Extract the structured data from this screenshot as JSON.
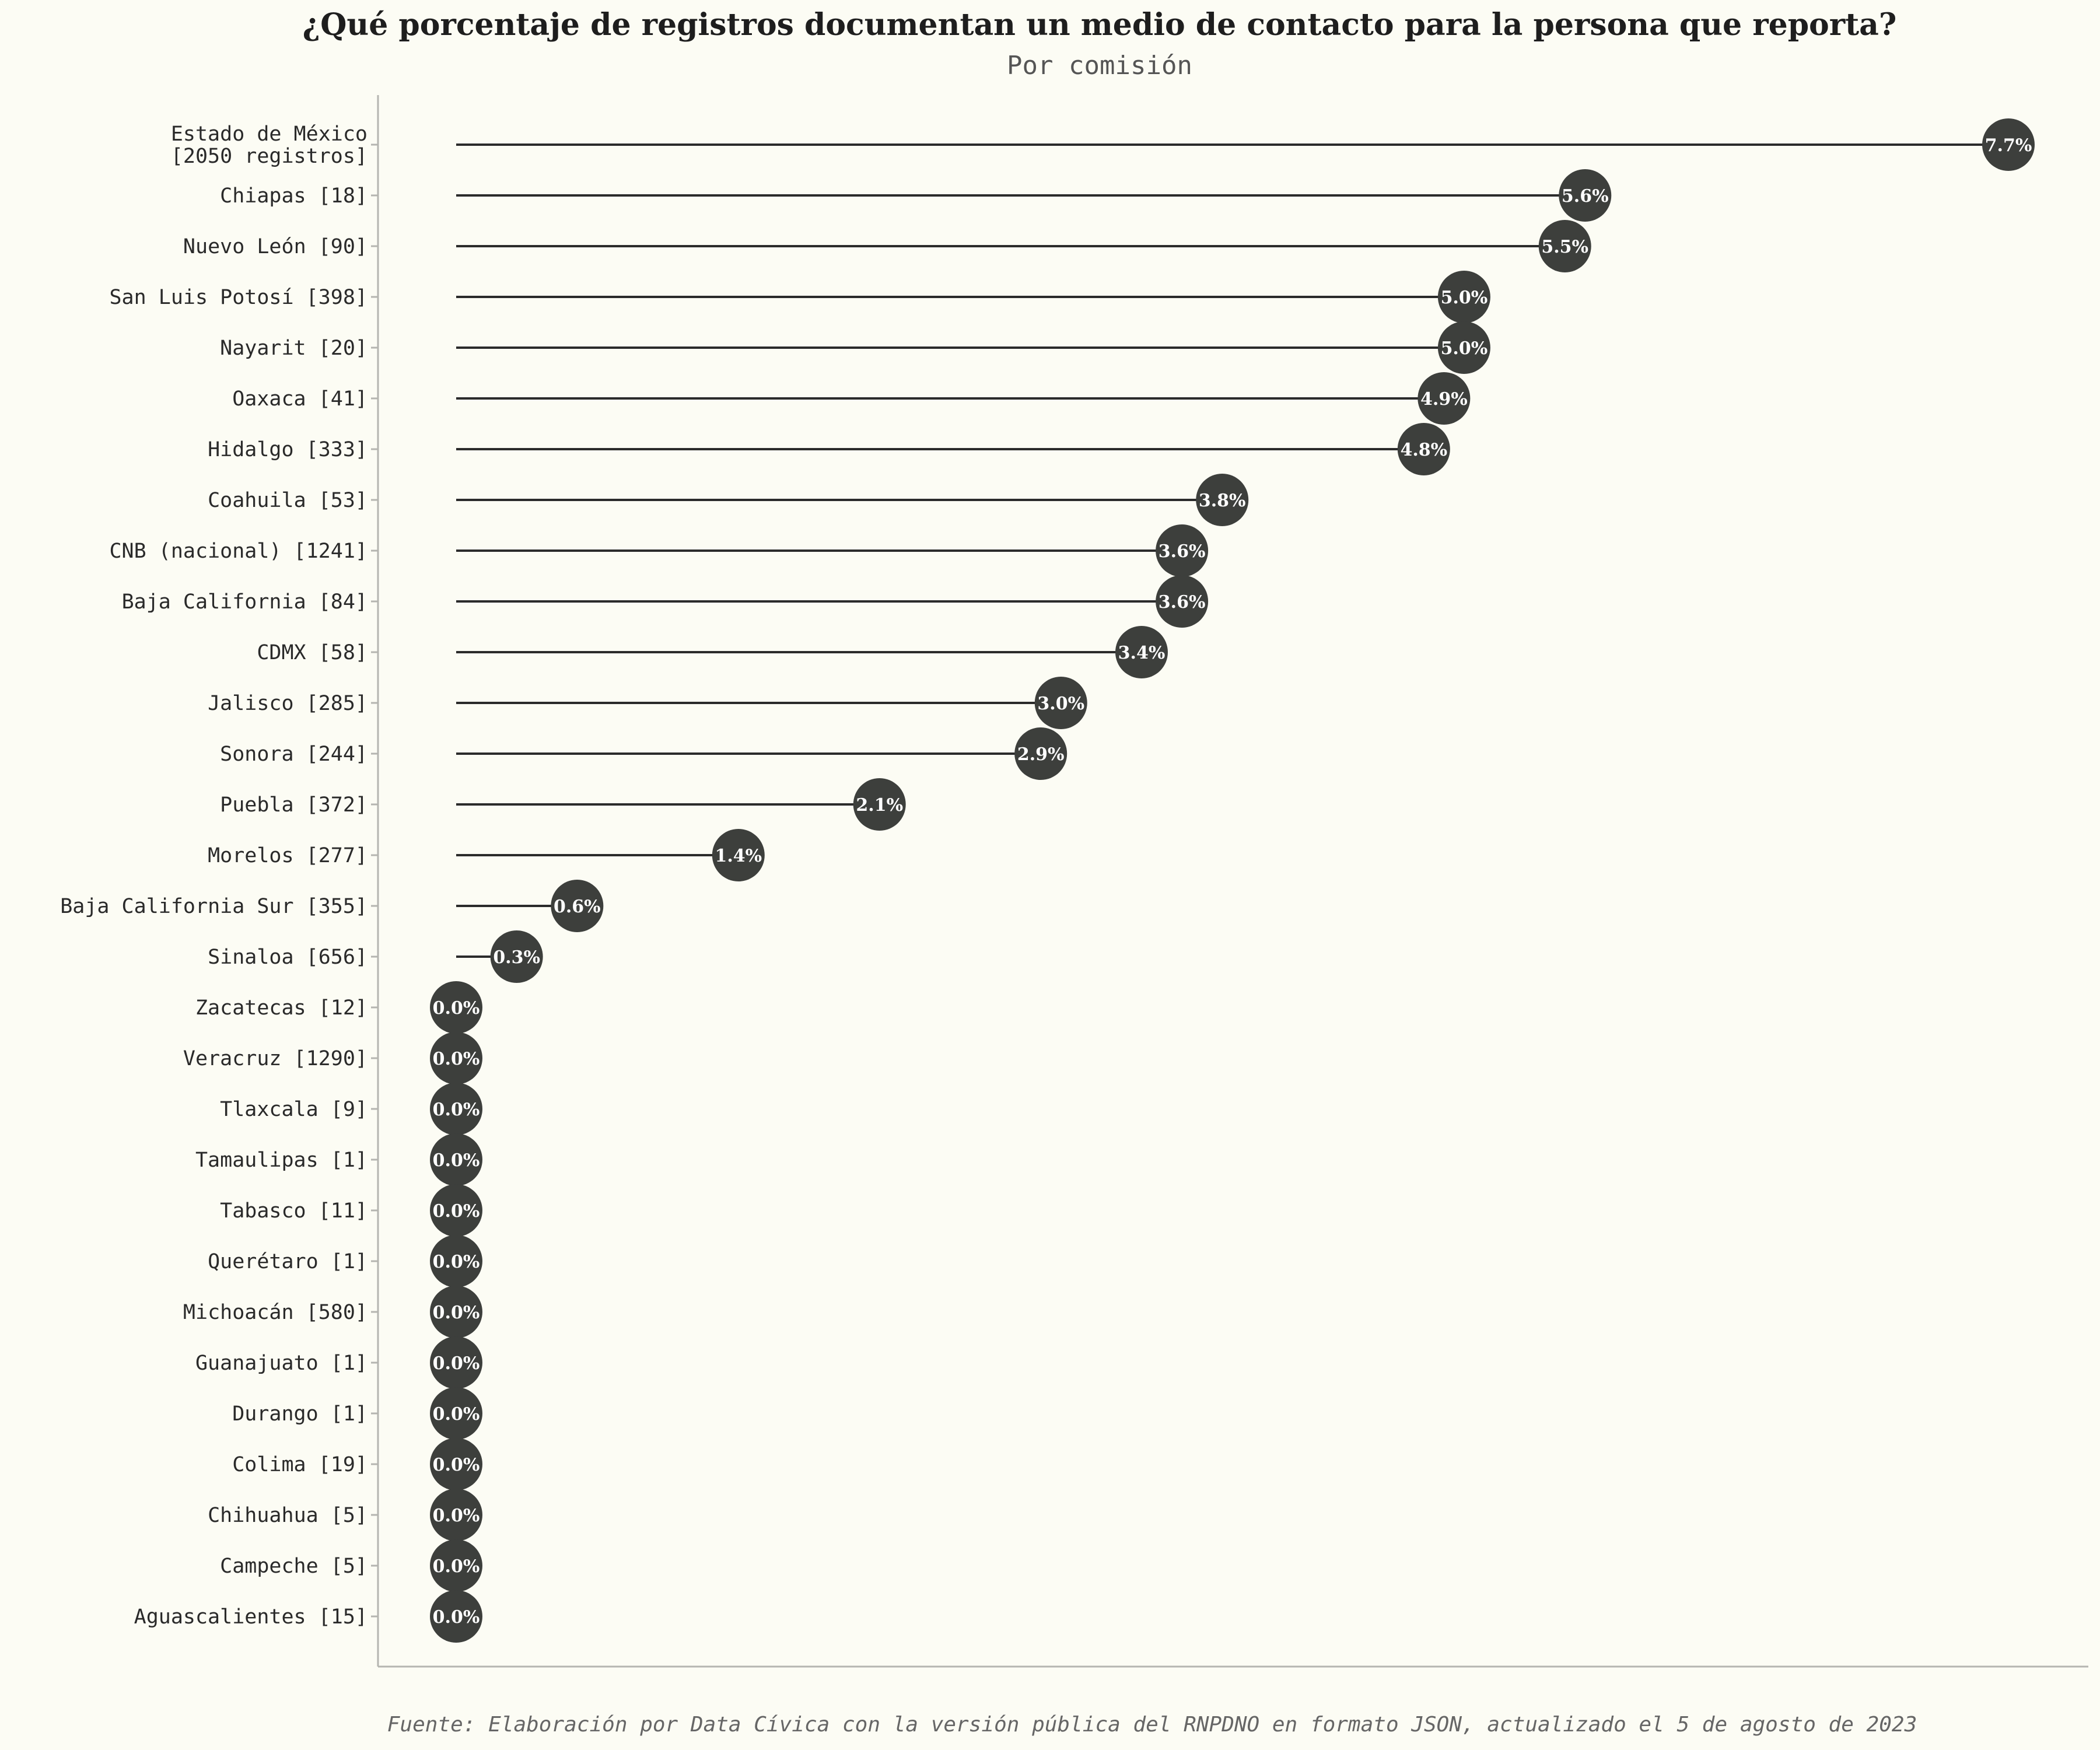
{
  "chart_data": {
    "type": "lollipop",
    "title": "¿Qué porcentaje de registros documentan un medio de contacto para la persona que reporta?",
    "subtitle": "Por comisión",
    "source": "Fuente: Elaboración por Data Cívica con la versión pública del RNPDNO en formato JSON, actualizado el 5 de agosto de 2023",
    "xlim": [
      0,
      7.7
    ],
    "grid": false,
    "colors": {
      "dot": "#3d3f3c",
      "stem": "#2b2b2b",
      "axis": "#b5b5b0",
      "background": "#fcfcf4"
    },
    "categories": [
      "Estado de México\n[2050 registros]",
      "Chiapas [18]",
      "Nuevo León [90]",
      "San Luis Potosí [398]",
      "Nayarit [20]",
      "Oaxaca [41]",
      "Hidalgo [333]",
      "Coahuila [53]",
      "CNB (nacional) [1241]",
      "Baja California [84]",
      "CDMX [58]",
      "Jalisco [285]",
      "Sonora [244]",
      "Puebla [372]",
      "Morelos [277]",
      "Baja California Sur [355]",
      "Sinaloa [656]",
      "Zacatecas [12]",
      "Veracruz [1290]",
      "Tlaxcala [9]",
      "Tamaulipas [1]",
      "Tabasco [11]",
      "Querétaro [1]",
      "Michoacán [580]",
      "Guanajuato [1]",
      "Durango [1]",
      "Colima [19]",
      "Chihuahua [5]",
      "Campeche [5]",
      "Aguascalientes [15]"
    ],
    "values": [
      7.7,
      5.6,
      5.5,
      5.0,
      5.0,
      4.9,
      4.8,
      3.8,
      3.6,
      3.6,
      3.4,
      3.0,
      2.9,
      2.1,
      1.4,
      0.6,
      0.3,
      0.0,
      0.0,
      0.0,
      0.0,
      0.0,
      0.0,
      0.0,
      0.0,
      0.0,
      0.0,
      0.0,
      0.0,
      0.0
    ],
    "value_labels": [
      "7.7%",
      "5.6%",
      "5.5%",
      "5.0%",
      "5.0%",
      "4.9%",
      "4.8%",
      "3.8%",
      "3.6%",
      "3.6%",
      "3.4%",
      "3.0%",
      "2.9%",
      "2.1%",
      "1.4%",
      "0.6%",
      "0.3%",
      "0.0%",
      "0.0%",
      "0.0%",
      "0.0%",
      "0.0%",
      "0.0%",
      "0.0%",
      "0.0%",
      "0.0%",
      "0.0%",
      "0.0%",
      "0.0%",
      "0.0%"
    ]
  }
}
